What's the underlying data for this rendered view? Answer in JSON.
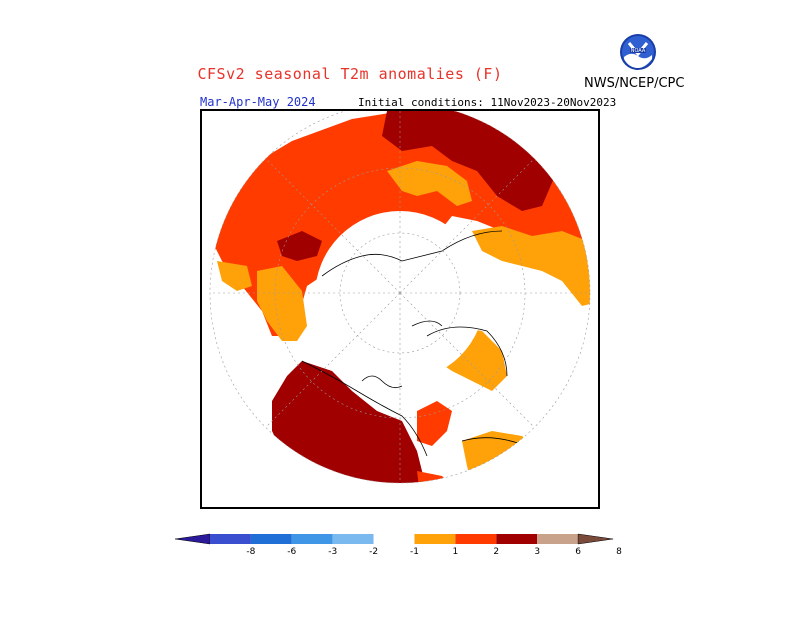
{
  "title": "CFSv2 seasonal T2m anomalies (F)",
  "season": "Mar-Apr-May 2024",
  "initial_conditions": "Initial conditions: 11Nov2023-20Nov2023",
  "agency": "NWS/NCEP/CPC",
  "logo_icon": "noaa-logo",
  "colors": {
    "cat_1_2": "#ffa20a",
    "cat_2_3": "#ff3b00",
    "cat_3_6": "#a00000",
    "title": "#e8332a",
    "season": "#2233cc"
  },
  "colorbar": {
    "tick_labels": [
      "-8",
      "-6",
      "-3",
      "-2",
      "-1",
      "1",
      "2",
      "3",
      "6",
      "8"
    ],
    "colors": [
      "#2b1a9a",
      "#3a4fd0",
      "#1f6fd6",
      "#3f96e6",
      "#7ab8f0",
      "#ffffff",
      "#ffa20a",
      "#ff3b00",
      "#a00000",
      "#c8a28a",
      "#7a4a3a"
    ]
  }
}
